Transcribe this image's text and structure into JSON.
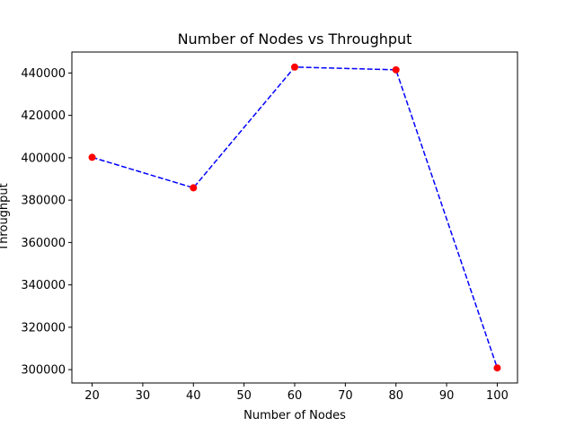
{
  "chart_data": {
    "type": "line",
    "title": "Number of Nodes vs Throughput",
    "xlabel": "Number of Nodes",
    "ylabel": "Throughput",
    "x": [
      20,
      40,
      60,
      80,
      100
    ],
    "y": [
      400200,
      385800,
      442800,
      441500,
      300800
    ],
    "xlim": [
      16,
      104
    ],
    "ylim": [
      293700,
      449900
    ],
    "xticks": [
      20,
      30,
      40,
      50,
      60,
      70,
      80,
      90,
      100
    ],
    "yticks": [
      300000,
      320000,
      340000,
      360000,
      380000,
      400000,
      420000,
      440000
    ],
    "xtick_labels": [
      "20",
      "30",
      "40",
      "50",
      "60",
      "70",
      "80",
      "90",
      "100"
    ],
    "ytick_labels": [
      "300000",
      "320000",
      "340000",
      "360000",
      "380000",
      "400000",
      "420000",
      "440000"
    ],
    "grid": false,
    "legend": null,
    "line_color": "#0000ff",
    "line_style": "dashed",
    "marker_color": "#ff0000",
    "marker": "circle"
  }
}
